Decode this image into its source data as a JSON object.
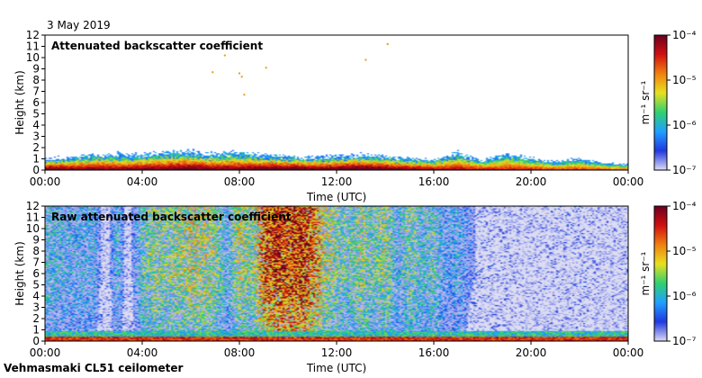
{
  "header": {
    "date": "3 May 2019"
  },
  "footer": {
    "site": "Vehmasmaki CL51 ceilometer"
  },
  "colors": {
    "background_noise": "#d6d6ee",
    "scale": [
      "#dcdcf2",
      "#2038e0",
      "#20a0ff",
      "#30d070",
      "#e8e020",
      "#f08010",
      "#d01010",
      "#6a0020"
    ]
  },
  "chart_data": [
    {
      "type": "heatmap",
      "title": "Attenuated backscatter coefficient",
      "xlabel": "Time (UTC)",
      "ylabel": "Height (km)",
      "x_ticks": [
        "00:00",
        "04:00",
        "08:00",
        "12:00",
        "16:00",
        "20:00",
        "00:00"
      ],
      "y_ticks": [
        "0",
        "1",
        "2",
        "3",
        "4",
        "5",
        "6",
        "7",
        "8",
        "9",
        "10",
        "11",
        "12"
      ],
      "xlim_hours": [
        0,
        24
      ],
      "ylim": [
        0,
        12
      ],
      "colorbar": {
        "label": "m⁻¹ sr⁻¹",
        "scale": "log",
        "min_exp": -7,
        "max_exp": -4,
        "ticks": [
          "10⁻⁷",
          "10⁻⁶",
          "10⁻⁵",
          "10⁻⁴"
        ]
      },
      "profile": {
        "hours": [
          0,
          1,
          2,
          3,
          4,
          5,
          6,
          7,
          8,
          9,
          10,
          11,
          12,
          13,
          14,
          15,
          16,
          17,
          18,
          19,
          20,
          21,
          22,
          23,
          24
        ],
        "boundary_layer_km": [
          1.0,
          1.1,
          1.3,
          1.4,
          1.3,
          1.5,
          1.6,
          1.4,
          1.5,
          1.3,
          1.2,
          1.1,
          1.2,
          1.3,
          1.2,
          1.0,
          0.9,
          1.5,
          0.8,
          1.4,
          1.0,
          0.7,
          1.0,
          0.6,
          0.5
        ],
        "surface_intensity": [
          0.85,
          0.8,
          0.8,
          0.75,
          0.8,
          0.8,
          0.85,
          0.8,
          0.8,
          0.85,
          0.9,
          0.85,
          0.85,
          0.9,
          0.85,
          0.8,
          0.75,
          0.7,
          0.7,
          0.65,
          0.65,
          0.6,
          0.6,
          0.6,
          0.55
        ]
      },
      "isolated_returns": [
        {
          "hour": 6.9,
          "height_km": 8.7
        },
        {
          "hour": 7.4,
          "height_km": 10.2
        },
        {
          "hour": 8.0,
          "height_km": 8.6
        },
        {
          "hour": 8.1,
          "height_km": 8.3
        },
        {
          "hour": 8.2,
          "height_km": 6.7
        },
        {
          "hour": 9.1,
          "height_km": 9.1
        },
        {
          "hour": 13.2,
          "height_km": 9.8
        },
        {
          "hour": 14.1,
          "height_km": 11.2
        }
      ]
    },
    {
      "type": "heatmap",
      "title": "Raw attenuated backscatter coefficient",
      "xlabel": "Time (UTC)",
      "ylabel": "Height (km)",
      "x_ticks": [
        "00:00",
        "04:00",
        "08:00",
        "12:00",
        "16:00",
        "20:00",
        "00:00"
      ],
      "y_ticks": [
        "0",
        "1",
        "2",
        "3",
        "4",
        "5",
        "6",
        "7",
        "8",
        "9",
        "10",
        "11",
        "12"
      ],
      "xlim_hours": [
        0,
        24
      ],
      "ylim": [
        0,
        12
      ],
      "colorbar": {
        "label": "m⁻¹ sr⁻¹",
        "scale": "log",
        "min_exp": -7,
        "max_exp": -4,
        "ticks": [
          "10⁻⁷",
          "10⁻⁶",
          "10⁻⁵",
          "10⁻⁴"
        ]
      },
      "noise_level_by_hour": {
        "hours": [
          0,
          1,
          2,
          2.5,
          3,
          3.4,
          4,
          4.5,
          5,
          6,
          7,
          7.5,
          8,
          8.5,
          9,
          9.5,
          10,
          10.5,
          11,
          11.5,
          12,
          12.5,
          13,
          13.5,
          14,
          14.5,
          15,
          15.5,
          16,
          16.5,
          17,
          17.5,
          18,
          19,
          20,
          21,
          22,
          23,
          24
        ],
        "level": [
          0.35,
          0.3,
          0.3,
          0.08,
          0.35,
          0.08,
          0.4,
          0.5,
          0.45,
          0.55,
          0.5,
          0.3,
          0.55,
          0.45,
          0.75,
          0.85,
          0.8,
          0.85,
          0.75,
          0.55,
          0.45,
          0.4,
          0.5,
          0.4,
          0.5,
          0.3,
          0.45,
          0.35,
          0.4,
          0.25,
          0.3,
          0.2,
          0.15,
          0.12,
          0.1,
          0.12,
          0.15,
          0.1,
          0.12
        ]
      }
    }
  ]
}
